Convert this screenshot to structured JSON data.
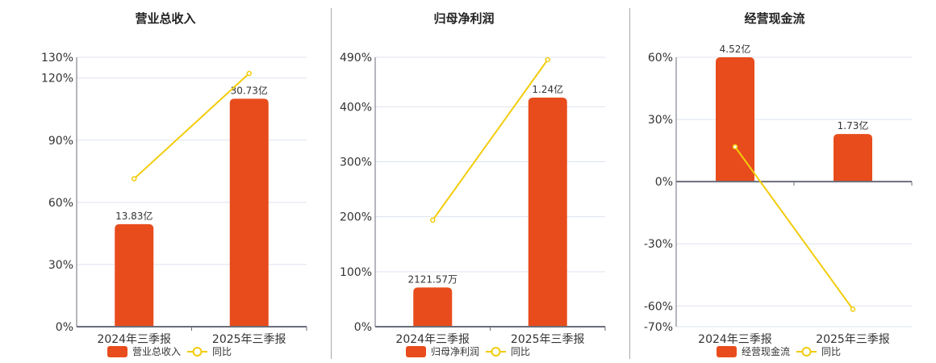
{
  "colors": {
    "bar": "#e84c1c",
    "line": "#f2cc0c",
    "grid": "#dde3ef",
    "axis": "#6b6e7a"
  },
  "chart_data": [
    {
      "type": "bar",
      "title": "营业总收入",
      "categories": [
        "2024年三季报",
        "2025年三季报"
      ],
      "bar_series": {
        "name": "营业总收入",
        "values": [
          13.83,
          30.73
        ],
        "unit": "亿",
        "labels": [
          "13.83亿",
          "30.73亿"
        ],
        "axis_max": 36.32
      },
      "line_series": {
        "name": "同比",
        "values": [
          71.4,
          122.2
        ]
      },
      "yticks": [
        0,
        30,
        60,
        90,
        120,
        130
      ],
      "ytick_labels": [
        "0%",
        "30%",
        "60%",
        "90%",
        "120%",
        "130%"
      ],
      "ylim": [
        0,
        130
      ],
      "legend": "bottom"
    },
    {
      "type": "bar",
      "title": "归母净利润",
      "categories": [
        "2024年三季报",
        "2025年三季报"
      ],
      "bar_series": {
        "name": "归母净利润",
        "values": [
          0.212157,
          1.24
        ],
        "unit": "亿",
        "labels": [
          "2121.57万",
          "1.24亿"
        ],
        "axis_max": 1.458
      },
      "line_series": {
        "name": "同比",
        "values": [
          193.7,
          485.6
        ]
      },
      "yticks": [
        0,
        100,
        200,
        300,
        400,
        490
      ],
      "ytick_labels": [
        "0%",
        "100%",
        "200%",
        "300%",
        "400%",
        "490%"
      ],
      "ylim": [
        0,
        490
      ],
      "legend": "bottom"
    },
    {
      "type": "bar",
      "title": "经营现金流",
      "categories": [
        "2024年三季报",
        "2025年三季报"
      ],
      "bar_series": {
        "name": "经营现金流",
        "values": [
          4.52,
          1.73
        ],
        "unit": "亿",
        "labels": [
          "4.52亿",
          "1.73亿"
        ],
        "axis_max": 4.52
      },
      "line_series": {
        "name": "同比",
        "values": [
          16.8,
          -61.6
        ]
      },
      "yticks": [
        -70,
        -60,
        -30,
        0,
        30,
        60
      ],
      "ytick_labels": [
        "-70%",
        "-60%",
        "-30%",
        "0%",
        "30%",
        "60%"
      ],
      "ylim": [
        -70,
        60
      ],
      "legend": "bottom"
    }
  ]
}
